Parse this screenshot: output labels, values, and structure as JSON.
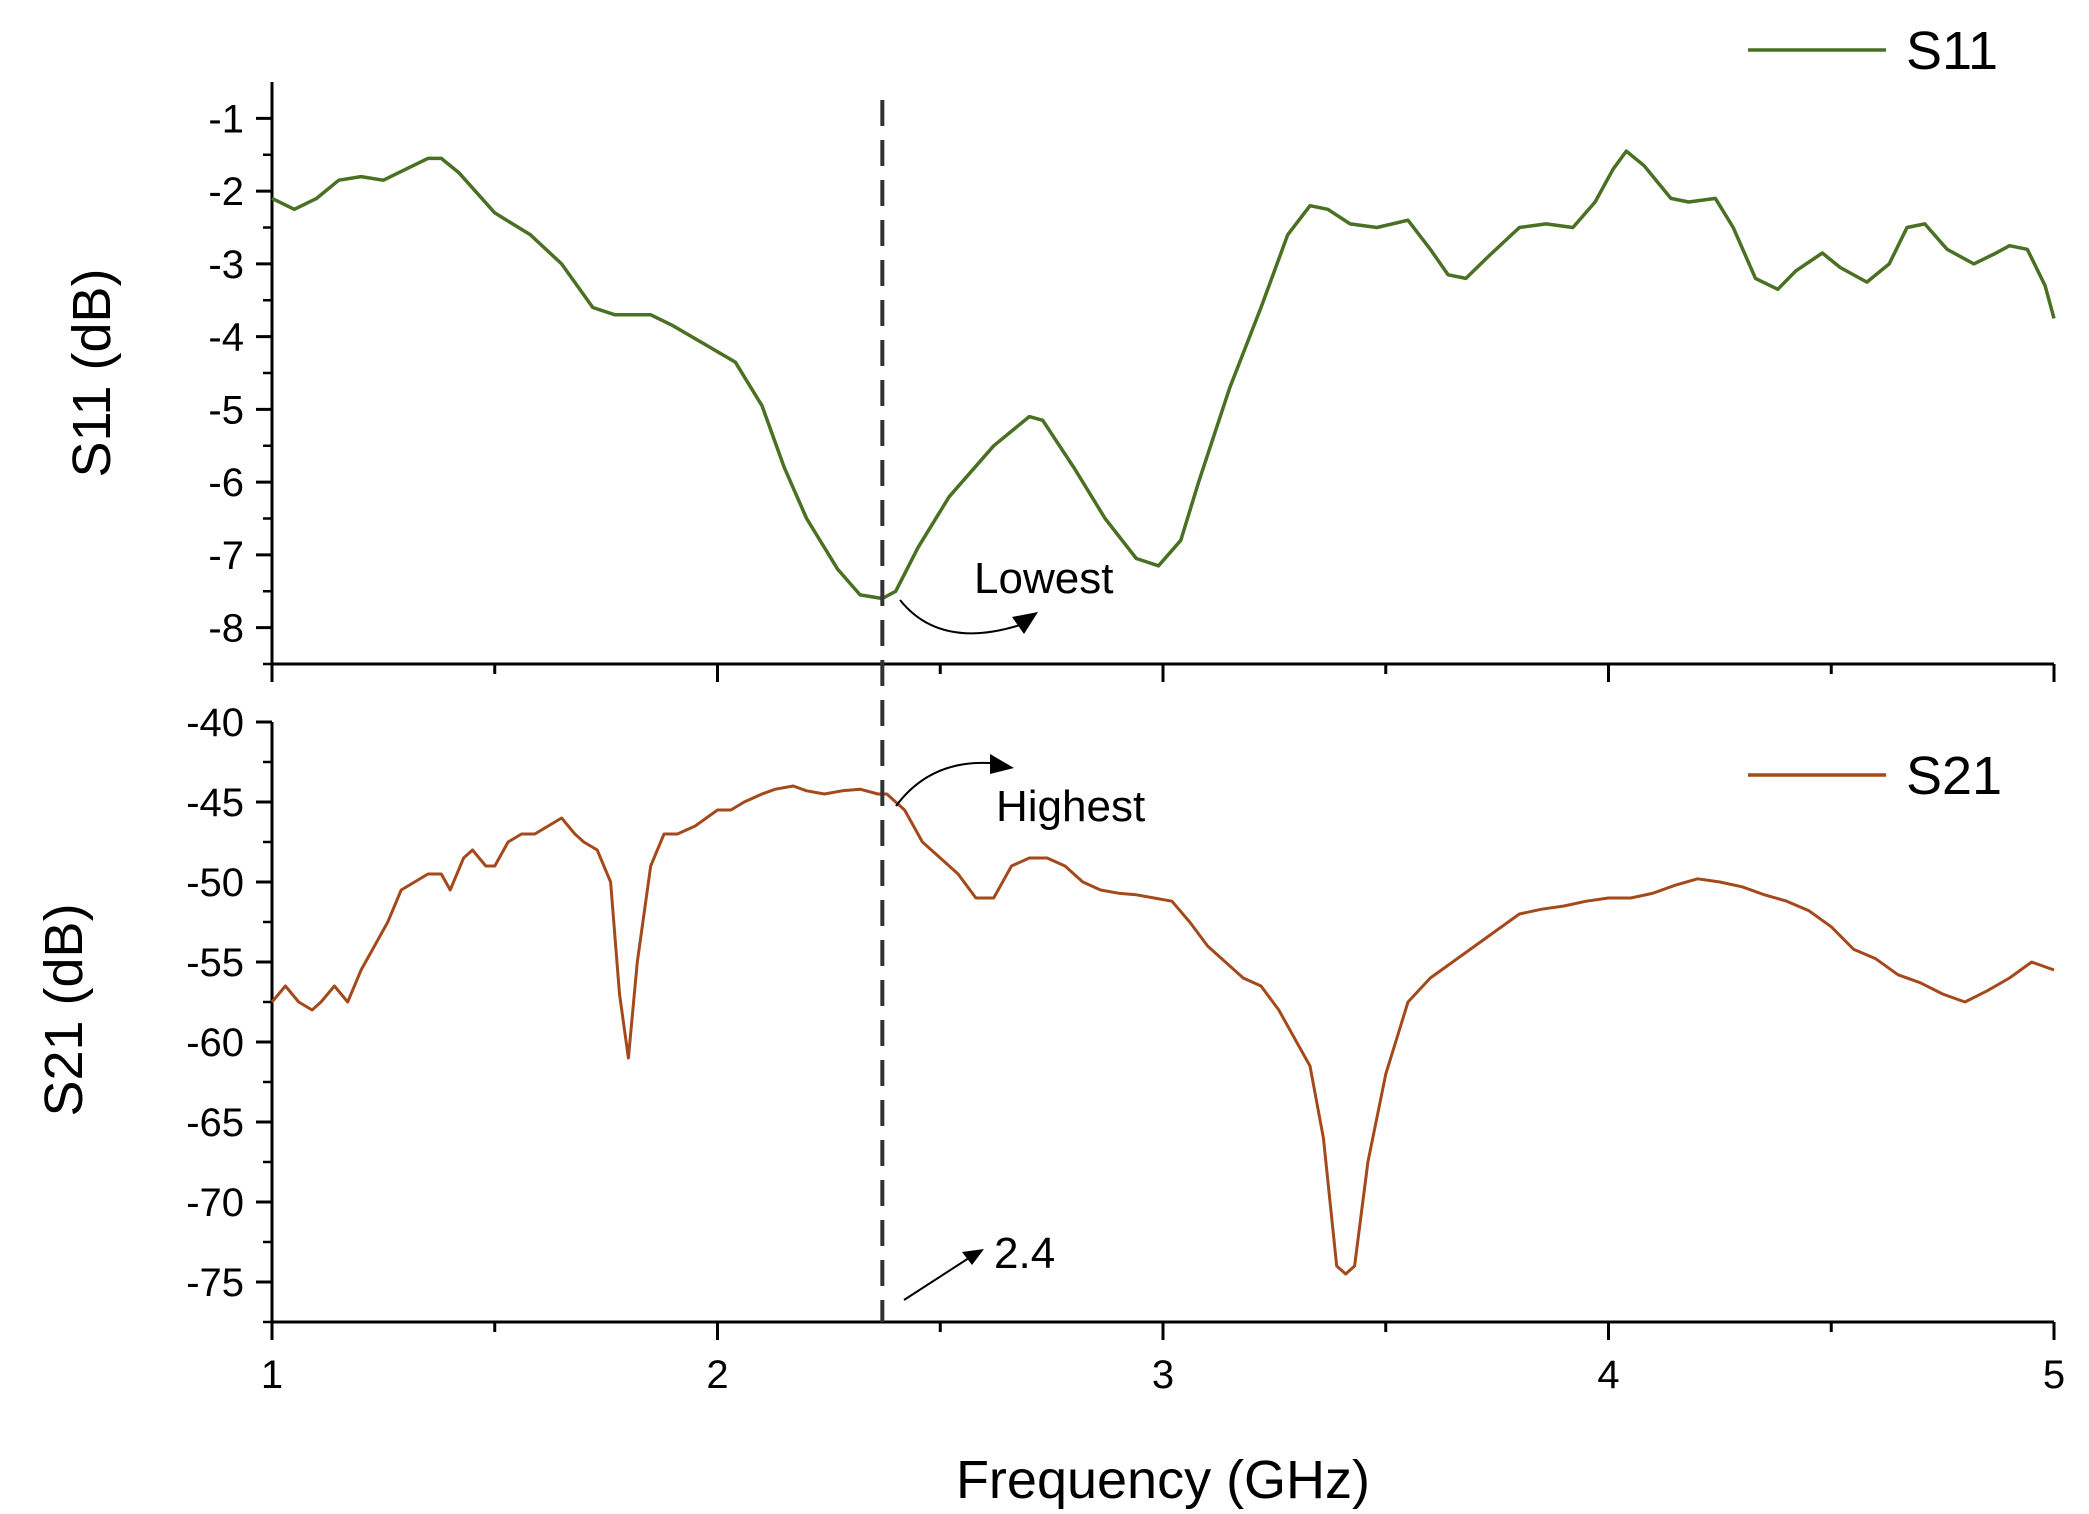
{
  "chart_data": [
    {
      "panel": "top",
      "type": "line",
      "ylabel": "S11 (dB)",
      "xlabel": "",
      "xlim": [
        1,
        5
      ],
      "ylim": [
        -8.5,
        -0.5
      ],
      "yticks": [
        -1,
        -2,
        -3,
        -4,
        -5,
        -6,
        -7,
        -8
      ],
      "ytick_labels": [
        "-1",
        "-2",
        "-3",
        "-4",
        "-5",
        "-6",
        "-7",
        "-8"
      ],
      "grid": false,
      "legend_position": "top-right",
      "series": [
        {
          "name": "S11",
          "color": "#4a7023",
          "x": [
            1.0,
            1.05,
            1.1,
            1.15,
            1.2,
            1.25,
            1.3,
            1.35,
            1.38,
            1.42,
            1.5,
            1.58,
            1.65,
            1.72,
            1.77,
            1.85,
            1.9,
            1.97,
            2.04,
            2.1,
            2.15,
            2.2,
            2.27,
            2.32,
            2.37,
            2.4,
            2.45,
            2.52,
            2.62,
            2.7,
            2.73,
            2.8,
            2.87,
            2.94,
            2.99,
            3.04,
            3.08,
            3.15,
            3.22,
            3.28,
            3.33,
            3.37,
            3.42,
            3.48,
            3.55,
            3.6,
            3.64,
            3.68,
            3.73,
            3.8,
            3.86,
            3.92,
            3.97,
            4.01,
            4.04,
            4.08,
            4.14,
            4.18,
            4.24,
            4.28,
            4.33,
            4.38,
            4.42,
            4.48,
            4.52,
            4.58,
            4.63,
            4.67,
            4.71,
            4.76,
            4.82,
            4.87,
            4.9,
            4.94,
            4.98,
            5.0
          ],
          "y": [
            -2.1,
            -2.25,
            -2.1,
            -1.85,
            -1.8,
            -1.85,
            -1.7,
            -1.55,
            -1.55,
            -1.75,
            -2.3,
            -2.6,
            -3.0,
            -3.6,
            -3.7,
            -3.7,
            -3.85,
            -4.1,
            -4.35,
            -4.95,
            -5.8,
            -6.5,
            -7.2,
            -7.55,
            -7.6,
            -7.5,
            -6.9,
            -6.2,
            -5.5,
            -5.1,
            -5.15,
            -5.8,
            -6.5,
            -7.05,
            -7.15,
            -6.8,
            -6.0,
            -4.7,
            -3.6,
            -2.6,
            -2.2,
            -2.25,
            -2.45,
            -2.5,
            -2.4,
            -2.8,
            -3.15,
            -3.2,
            -2.9,
            -2.5,
            -2.45,
            -2.5,
            -2.15,
            -1.7,
            -1.45,
            -1.65,
            -2.1,
            -2.15,
            -2.1,
            -2.5,
            -3.2,
            -3.35,
            -3.1,
            -2.85,
            -3.05,
            -3.25,
            -3.0,
            -2.5,
            -2.45,
            -2.8,
            -3.0,
            -2.85,
            -2.75,
            -2.8,
            -3.3,
            -3.75
          ]
        }
      ],
      "annotations": [
        {
          "text": "Lowest",
          "x": 2.4,
          "y": -7.6
        }
      ]
    },
    {
      "panel": "bottom",
      "type": "line",
      "ylabel": "S21 (dB)",
      "xlabel": "Frequency (GHz)",
      "xlim": [
        1,
        5
      ],
      "ylim": [
        -77.5,
        -40
      ],
      "xticks": [
        1,
        2,
        3,
        4,
        5
      ],
      "xtick_labels": [
        "1",
        "2",
        "3",
        "4",
        "5"
      ],
      "yticks": [
        -40,
        -45,
        -50,
        -55,
        -60,
        -65,
        -70,
        -75
      ],
      "ytick_labels": [
        "-40",
        "-45",
        "-50",
        "-55",
        "-60",
        "-65",
        "-70",
        "-75"
      ],
      "grid": false,
      "legend_position": "top-right",
      "series": [
        {
          "name": "S21",
          "color": "#a4491c",
          "x": [
            1.0,
            1.03,
            1.06,
            1.09,
            1.11,
            1.14,
            1.17,
            1.2,
            1.23,
            1.26,
            1.29,
            1.32,
            1.35,
            1.38,
            1.4,
            1.43,
            1.45,
            1.48,
            1.5,
            1.53,
            1.56,
            1.59,
            1.62,
            1.65,
            1.68,
            1.7,
            1.73,
            1.76,
            1.78,
            1.8,
            1.82,
            1.85,
            1.88,
            1.91,
            1.95,
            2.0,
            2.03,
            2.06,
            2.1,
            2.13,
            2.17,
            2.2,
            2.24,
            2.28,
            2.32,
            2.36,
            2.38,
            2.42,
            2.46,
            2.5,
            2.54,
            2.58,
            2.62,
            2.66,
            2.7,
            2.74,
            2.78,
            2.82,
            2.86,
            2.9,
            2.94,
            2.98,
            3.02,
            3.06,
            3.1,
            3.14,
            3.18,
            3.22,
            3.26,
            3.3,
            3.33,
            3.36,
            3.39,
            3.41,
            3.43,
            3.46,
            3.5,
            3.55,
            3.6,
            3.65,
            3.7,
            3.75,
            3.8,
            3.85,
            3.9,
            3.95,
            4.0,
            4.05,
            4.1,
            4.15,
            4.2,
            4.25,
            4.3,
            4.35,
            4.4,
            4.45,
            4.5,
            4.55,
            4.6,
            4.65,
            4.7,
            4.75,
            4.8,
            4.85,
            4.9,
            4.95,
            5.0
          ],
          "y": [
            -57.5,
            -56.5,
            -57.5,
            -58.0,
            -57.5,
            -56.5,
            -57.5,
            -55.5,
            -54.0,
            -52.5,
            -50.5,
            -50.0,
            -49.5,
            -49.5,
            -50.5,
            -48.5,
            -48.0,
            -49.0,
            -49.0,
            -47.5,
            -47.0,
            -47.0,
            -46.5,
            -46.0,
            -47.0,
            -47.5,
            -48.0,
            -50.0,
            -57.0,
            -61.0,
            -55.0,
            -49.0,
            -47.0,
            -47.0,
            -46.5,
            -45.5,
            -45.5,
            -45.0,
            -44.5,
            -44.2,
            -44.0,
            -44.3,
            -44.5,
            -44.3,
            -44.2,
            -44.5,
            -44.5,
            -45.5,
            -47.5,
            -48.5,
            -49.5,
            -51.0,
            -51.0,
            -49.0,
            -48.5,
            -48.5,
            -49.0,
            -50.0,
            -50.5,
            -50.7,
            -50.8,
            -51.0,
            -51.2,
            -52.5,
            -54.0,
            -55.0,
            -56.0,
            -56.5,
            -58.0,
            -60.0,
            -61.5,
            -66.0,
            -74.0,
            -74.5,
            -74.0,
            -67.5,
            -62.0,
            -57.5,
            -56.0,
            -55.0,
            -54.0,
            -53.0,
            -52.0,
            -51.7,
            -51.5,
            -51.2,
            -51.0,
            -51.0,
            -50.7,
            -50.2,
            -49.8,
            -50.0,
            -50.3,
            -50.8,
            -51.2,
            -51.8,
            -52.8,
            -54.2,
            -54.8,
            -55.8,
            -56.3,
            -57.0,
            -57.5,
            -56.8,
            -56.0,
            -55.0,
            -55.5
          ]
        }
      ],
      "annotations": [
        {
          "text": "Highest",
          "x": 2.4,
          "y": -44.5
        },
        {
          "text": "2.4",
          "x": 2.4,
          "y": -75.5
        }
      ]
    }
  ],
  "marker_line": {
    "x": 2.37
  }
}
